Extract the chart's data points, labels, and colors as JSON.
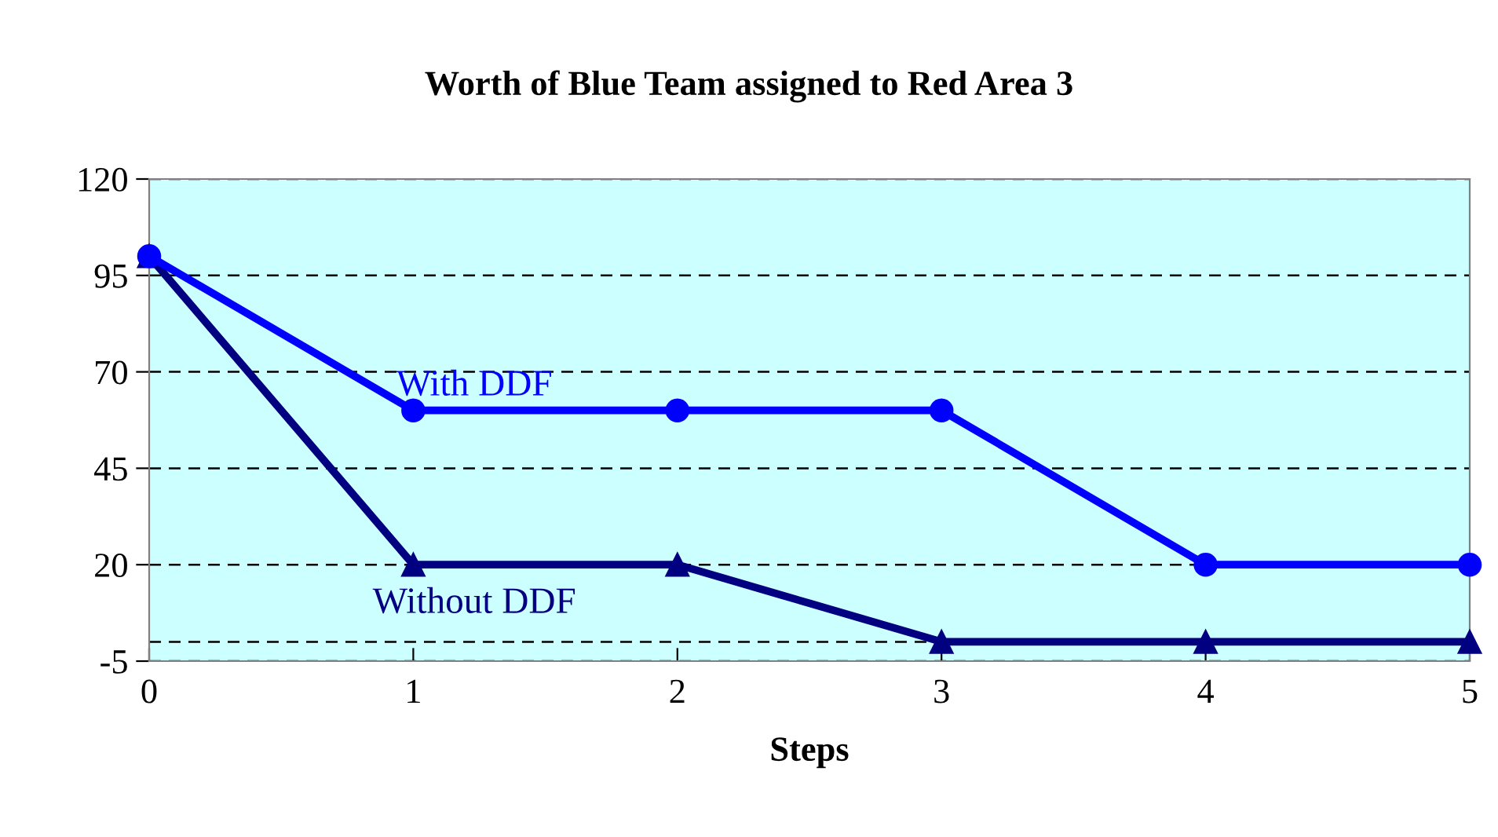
{
  "chart_data": {
    "type": "line",
    "title": "Worth of Blue Team assigned to Red Area 3",
    "xlabel": "Steps",
    "x": [
      0,
      1,
      2,
      3,
      4,
      5
    ],
    "series": [
      {
        "name": "With DDF",
        "color": "#0000ff",
        "marker": "circle",
        "values": [
          100,
          60,
          60,
          60,
          20,
          20
        ]
      },
      {
        "name": "Without DDF",
        "color": "#000080",
        "marker": "triangle",
        "values": [
          100,
          20,
          20,
          0,
          0,
          0
        ]
      }
    ],
    "xlim": [
      0,
      5
    ],
    "xticks": [
      0,
      1,
      2,
      3,
      4,
      5
    ],
    "ylim": [
      -5,
      120
    ],
    "yticks": [
      -5,
      20,
      45,
      70,
      95,
      120
    ],
    "ref_lines": [
      {
        "axis": "y",
        "value": 0,
        "color": "#000000",
        "line_style": "dashed"
      }
    ],
    "grid": "y",
    "legend": false,
    "line_style": "solid"
  }
}
